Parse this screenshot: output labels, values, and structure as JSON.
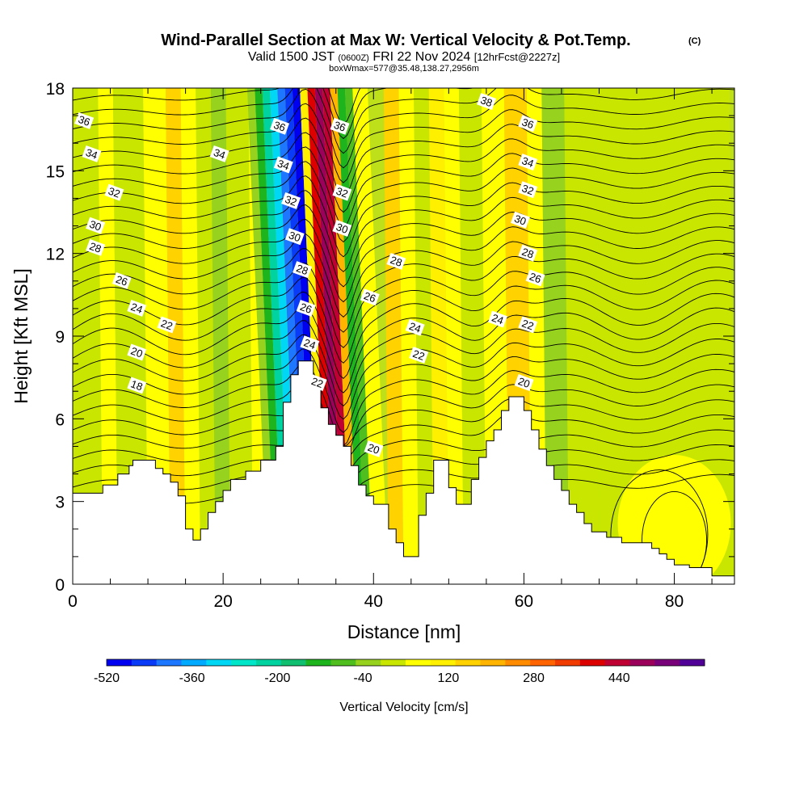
{
  "chart_data": {
    "type": "contour",
    "title": "Wind-Parallel Section at Max W: Vertical Velocity & Pot.Temp.",
    "title_mark": "(C)",
    "subtitle_parts": [
      "Valid 1500 JST",
      "(0600Z)",
      "FRI 22 Nov 2024",
      "[12hrFcst@2227z]"
    ],
    "subtitle2": "boxWmax=577@35.48,138.27,2956m",
    "xlabel": "Distance [nm]",
    "ylabel": "Height [Kft MSL]",
    "xlim": [
      0,
      88
    ],
    "ylim": [
      0,
      18
    ],
    "x_ticks": [
      0,
      20,
      40,
      60,
      80
    ],
    "y_ticks": [
      0,
      3,
      6,
      9,
      12,
      15,
      18
    ],
    "colorbar": {
      "label": "Vertical Velocity [cm/s]",
      "ticks": [
        "-520",
        "-360",
        "-200",
        "-40",
        "120",
        "280",
        "440"
      ],
      "levels": [
        -520,
        600
      ],
      "colors": [
        "#0000f0",
        "#0a3cf8",
        "#1e78ff",
        "#00aaff",
        "#00d7f5",
        "#00e6c8",
        "#00d2a0",
        "#10c070",
        "#1eb41e",
        "#50be1e",
        "#96d21e",
        "#c8e600",
        "#ffff00",
        "#fff000",
        "#ffd200",
        "#ffb400",
        "#ff8c00",
        "#ff6400",
        "#f03c00",
        "#dc0000",
        "#be0032",
        "#9b005a",
        "#780078",
        "#500096"
      ]
    },
    "theta_labels": [
      {
        "v": "36",
        "x": 1.5,
        "y": 16.8
      },
      {
        "v": "34",
        "x": 2.5,
        "y": 15.6
      },
      {
        "v": "32",
        "x": 5.5,
        "y": 14.2
      },
      {
        "v": "30",
        "x": 3.0,
        "y": 13.0
      },
      {
        "v": "28",
        "x": 3.0,
        "y": 12.2
      },
      {
        "v": "26",
        "x": 6.5,
        "y": 11.0
      },
      {
        "v": "24",
        "x": 8.5,
        "y": 10.0
      },
      {
        "v": "22",
        "x": 12.5,
        "y": 9.4
      },
      {
        "v": "20",
        "x": 8.5,
        "y": 8.4
      },
      {
        "v": "18",
        "x": 8.5,
        "y": 7.2
      },
      {
        "v": "34",
        "x": 19.5,
        "y": 15.6
      },
      {
        "v": "36",
        "x": 27.5,
        "y": 16.6
      },
      {
        "v": "34",
        "x": 28.0,
        "y": 15.2
      },
      {
        "v": "32",
        "x": 29.0,
        "y": 13.9
      },
      {
        "v": "30",
        "x": 29.5,
        "y": 12.6
      },
      {
        "v": "28",
        "x": 30.5,
        "y": 11.4
      },
      {
        "v": "26",
        "x": 31.0,
        "y": 10.0
      },
      {
        "v": "24",
        "x": 31.5,
        "y": 8.7
      },
      {
        "v": "22",
        "x": 32.5,
        "y": 7.3
      },
      {
        "v": "36",
        "x": 35.5,
        "y": 16.6
      },
      {
        "v": "32",
        "x": 35.8,
        "y": 14.2
      },
      {
        "v": "30",
        "x": 35.8,
        "y": 12.9
      },
      {
        "v": "28",
        "x": 43.0,
        "y": 11.7
      },
      {
        "v": "26",
        "x": 39.5,
        "y": 10.4
      },
      {
        "v": "24",
        "x": 45.5,
        "y": 9.3
      },
      {
        "v": "22",
        "x": 46.0,
        "y": 8.3
      },
      {
        "v": "20",
        "x": 40.0,
        "y": 4.9
      },
      {
        "v": "38",
        "x": 55.0,
        "y": 17.5
      },
      {
        "v": "36",
        "x": 60.5,
        "y": 16.7
      },
      {
        "v": "34",
        "x": 60.5,
        "y": 15.3
      },
      {
        "v": "32",
        "x": 60.5,
        "y": 14.3
      },
      {
        "v": "30",
        "x": 59.5,
        "y": 13.2
      },
      {
        "v": "28",
        "x": 60.5,
        "y": 12.0
      },
      {
        "v": "26",
        "x": 61.5,
        "y": 11.1
      },
      {
        "v": "24",
        "x": 56.5,
        "y": 9.6
      },
      {
        "v": "22",
        "x": 60.5,
        "y": 9.4
      },
      {
        "v": "20",
        "x": 60.0,
        "y": 7.3
      }
    ],
    "terrain_profile": [
      [
        0,
        3.3
      ],
      [
        4,
        3.3
      ],
      [
        4,
        3.6
      ],
      [
        6,
        3.6
      ],
      [
        6,
        4.0
      ],
      [
        7.5,
        4.0
      ],
      [
        7.5,
        4.3
      ],
      [
        8,
        4.3
      ],
      [
        8,
        4.5
      ],
      [
        11,
        4.5
      ],
      [
        11,
        4.2
      ],
      [
        12,
        4.2
      ],
      [
        12,
        4.0
      ],
      [
        13,
        4.0
      ],
      [
        13,
        3.7
      ],
      [
        14,
        3.7
      ],
      [
        14,
        3.2
      ],
      [
        15,
        3.2
      ],
      [
        15,
        2.0
      ],
      [
        16,
        2.0
      ],
      [
        16,
        1.6
      ],
      [
        17,
        1.6
      ],
      [
        17,
        2.0
      ],
      [
        18,
        2.0
      ],
      [
        18,
        2.6
      ],
      [
        19,
        2.6
      ],
      [
        19,
        3.0
      ],
      [
        20,
        3.0
      ],
      [
        20,
        3.4
      ],
      [
        21,
        3.4
      ],
      [
        21,
        3.8
      ],
      [
        23,
        3.8
      ],
      [
        23,
        4.1
      ],
      [
        25,
        4.1
      ],
      [
        25,
        4.5
      ],
      [
        27,
        4.5
      ],
      [
        27,
        5.0
      ],
      [
        28,
        5.0
      ],
      [
        28,
        6.6
      ],
      [
        29,
        6.6
      ],
      [
        29,
        7.6
      ],
      [
        30,
        7.6
      ],
      [
        30,
        8.1
      ],
      [
        32,
        8.1
      ],
      [
        32,
        7.4
      ],
      [
        33,
        7.4
      ],
      [
        33,
        6.4
      ],
      [
        34,
        6.4
      ],
      [
        34,
        5.8
      ],
      [
        35,
        5.8
      ],
      [
        35,
        5.4
      ],
      [
        36,
        5.4
      ],
      [
        36,
        5.0
      ],
      [
        37,
        5.0
      ],
      [
        37,
        4.3
      ],
      [
        38,
        4.3
      ],
      [
        38,
        3.6
      ],
      [
        39,
        3.6
      ],
      [
        39,
        3.2
      ],
      [
        40,
        3.2
      ],
      [
        40,
        2.9
      ],
      [
        42,
        2.9
      ],
      [
        42,
        2.0
      ],
      [
        43,
        2.0
      ],
      [
        43,
        1.5
      ],
      [
        44,
        1.5
      ],
      [
        44,
        1.0
      ],
      [
        46,
        1.0
      ],
      [
        46,
        2.5
      ],
      [
        47,
        2.5
      ],
      [
        47,
        3.3
      ],
      [
        48,
        3.3
      ],
      [
        48,
        4.5
      ],
      [
        50,
        4.5
      ],
      [
        50,
        3.5
      ],
      [
        51,
        3.5
      ],
      [
        51,
        2.9
      ],
      [
        53,
        2.9
      ],
      [
        53,
        3.8
      ],
      [
        54,
        3.8
      ],
      [
        54,
        4.6
      ],
      [
        55,
        4.6
      ],
      [
        55,
        5.2
      ],
      [
        56,
        5.2
      ],
      [
        56,
        5.6
      ],
      [
        57,
        5.6
      ],
      [
        57,
        6.3
      ],
      [
        58,
        6.3
      ],
      [
        58,
        6.8
      ],
      [
        60,
        6.8
      ],
      [
        60,
        6.3
      ],
      [
        61,
        6.3
      ],
      [
        61,
        5.6
      ],
      [
        62,
        5.6
      ],
      [
        62,
        4.9
      ],
      [
        63,
        4.9
      ],
      [
        63,
        4.3
      ],
      [
        64,
        4.3
      ],
      [
        64,
        3.8
      ],
      [
        65,
        3.8
      ],
      [
        65,
        3.4
      ],
      [
        66,
        3.4
      ],
      [
        66,
        2.9
      ],
      [
        67,
        2.9
      ],
      [
        67,
        2.6
      ],
      [
        68,
        2.6
      ],
      [
        68,
        2.2
      ],
      [
        69,
        2.2
      ],
      [
        69,
        1.9
      ],
      [
        71,
        1.9
      ],
      [
        71,
        1.7
      ],
      [
        73,
        1.7
      ],
      [
        73,
        1.5
      ],
      [
        77,
        1.5
      ],
      [
        77,
        1.3
      ],
      [
        78,
        1.3
      ],
      [
        78,
        1.1
      ],
      [
        79,
        1.1
      ],
      [
        79,
        0.9
      ],
      [
        80,
        0.9
      ],
      [
        80,
        0.7
      ],
      [
        82,
        0.7
      ],
      [
        82,
        0.6
      ],
      [
        85,
        0.6
      ],
      [
        85,
        0.3
      ],
      [
        88,
        0.3
      ]
    ]
  }
}
